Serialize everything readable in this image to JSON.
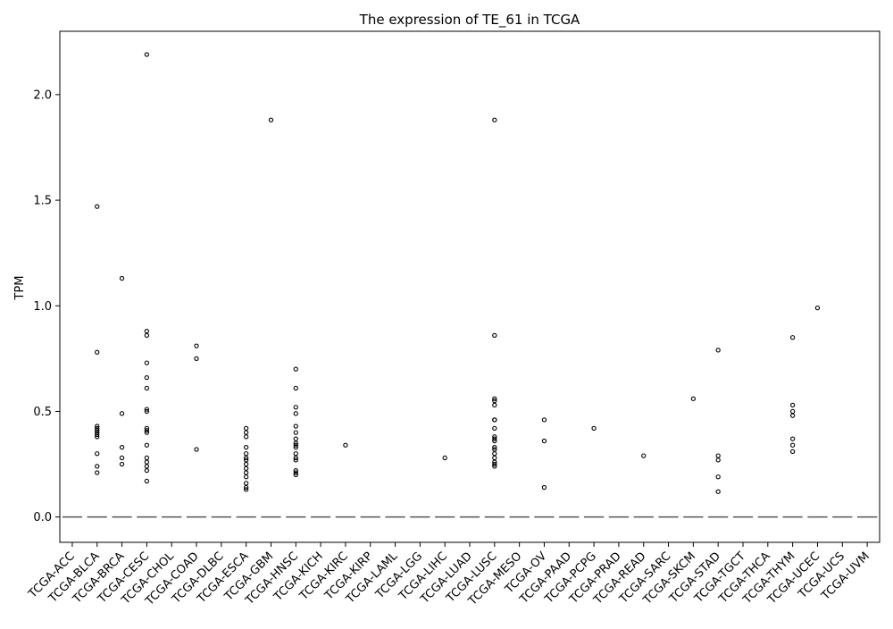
{
  "chart_data": {
    "type": "box",
    "title": "The expression of TE_61 in TCGA",
    "xlabel": "",
    "ylabel": "TPM",
    "ylim": [
      -0.12,
      2.3
    ],
    "yticks": [
      0.0,
      0.5,
      1.0,
      1.5,
      2.0
    ],
    "ytick_labels": [
      "0.0",
      "0.5",
      "1.0",
      "1.5",
      "2.0"
    ],
    "grid": false,
    "median_color": "#555555",
    "categories": [
      "TCGA-ACC",
      "TCGA-BLCA",
      "TCGA-BRCA",
      "TCGA-CESC",
      "TCGA-CHOL",
      "TCGA-COAD",
      "TCGA-DLBC",
      "TCGA-ESCA",
      "TCGA-GBM",
      "TCGA-HNSC",
      "TCGA-KICH",
      "TCGA-KIRC",
      "TCGA-KIRP",
      "TCGA-LAML",
      "TCGA-LGG",
      "TCGA-LIHC",
      "TCGA-LUAD",
      "TCGA-LUSC",
      "TCGA-MESO",
      "TCGA-OV",
      "TCGA-PAAD",
      "TCGA-PCPG",
      "TCGA-PRAD",
      "TCGA-READ",
      "TCGA-SARC",
      "TCGA-SKCM",
      "TCGA-STAD",
      "TCGA-TGCT",
      "TCGA-THCA",
      "TCGA-THYM",
      "TCGA-UCEC",
      "TCGA-UCS",
      "TCGA-UVM"
    ],
    "medians": [
      0,
      0,
      0,
      0,
      0,
      0,
      0,
      0,
      0,
      0,
      0,
      0,
      0,
      0,
      0,
      0,
      0,
      0,
      0,
      0,
      0,
      0,
      0,
      0,
      0,
      0,
      0,
      0,
      0,
      0,
      0,
      0,
      0
    ],
    "outliers": [
      [],
      [
        1.47,
        0.78,
        0.43,
        0.42,
        0.41,
        0.4,
        0.39,
        0.38,
        0.3,
        0.24,
        0.21
      ],
      [
        1.13,
        0.49,
        0.33,
        0.28,
        0.25
      ],
      [
        2.19,
        0.88,
        0.86,
        0.73,
        0.66,
        0.61,
        0.51,
        0.5,
        0.42,
        0.41,
        0.4,
        0.34,
        0.28,
        0.26,
        0.24,
        0.22,
        0.17
      ],
      [],
      [
        0.81,
        0.75,
        0.32
      ],
      [],
      [
        0.42,
        0.4,
        0.38,
        0.33,
        0.3,
        0.28,
        0.27,
        0.25,
        0.23,
        0.21,
        0.19,
        0.16,
        0.14,
        0.13
      ],
      [
        1.88
      ],
      [
        0.7,
        0.61,
        0.52,
        0.49,
        0.43,
        0.4,
        0.37,
        0.35,
        0.34,
        0.33,
        0.3,
        0.28,
        0.27,
        0.22,
        0.21,
        0.2
      ],
      [],
      [
        0.34
      ],
      [],
      [],
      [],
      [
        0.28
      ],
      [],
      [
        1.88,
        0.86,
        0.56,
        0.55,
        0.53,
        0.46,
        0.46,
        0.42,
        0.38,
        0.37,
        0.36,
        0.33,
        0.32,
        0.3,
        0.28,
        0.26,
        0.25,
        0.24
      ],
      [],
      [
        0.46,
        0.36,
        0.14
      ],
      [],
      [
        0.42
      ],
      [],
      [
        0.29
      ],
      [],
      [
        0.56
      ],
      [
        0.79,
        0.29,
        0.27,
        0.19,
        0.12
      ],
      [],
      [],
      [
        0.85,
        0.53,
        0.5,
        0.48,
        0.37,
        0.34,
        0.31
      ],
      [
        0.99
      ],
      [],
      []
    ]
  }
}
